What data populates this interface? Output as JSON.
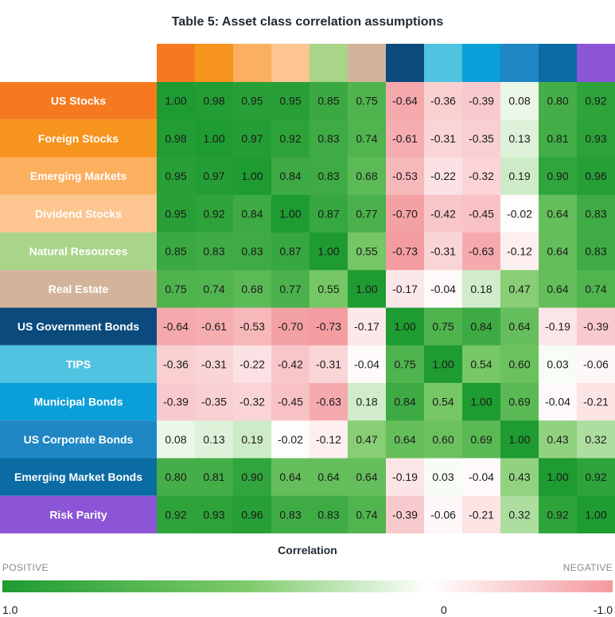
{
  "chart_data": {
    "type": "heatmap",
    "title": "Table 5: Asset class correlation assumptions",
    "rows": [
      "US Stocks",
      "Foreign Stocks",
      "Emerging Markets",
      "Dividend Stocks",
      "Natural Resources",
      "Real Estate",
      "US Government Bonds",
      "TIPS",
      "Municipal Bonds",
      "US Corporate Bonds",
      "Emerging Market Bonds",
      "Risk Parity"
    ],
    "row_colors": [
      "#f57a1f",
      "#f7941d",
      "#fbb060",
      "#fdc590",
      "#a8d58a",
      "#d3b49a",
      "#0a4a7c",
      "#4fc3e0",
      "#0a9fd8",
      "#1f87c4",
      "#0b6ba3",
      "#8c54d6"
    ],
    "values": [
      [
        1.0,
        0.98,
        0.95,
        0.95,
        0.85,
        0.75,
        -0.64,
        -0.36,
        -0.39,
        0.08,
        0.8,
        0.92
      ],
      [
        0.98,
        1.0,
        0.97,
        0.92,
        0.83,
        0.74,
        -0.61,
        -0.31,
        -0.35,
        0.13,
        0.81,
        0.93
      ],
      [
        0.95,
        0.97,
        1.0,
        0.84,
        0.83,
        0.68,
        -0.53,
        -0.22,
        -0.32,
        0.19,
        0.9,
        0.96
      ],
      [
        0.95,
        0.92,
        0.84,
        1.0,
        0.87,
        0.77,
        -0.7,
        -0.42,
        -0.45,
        -0.02,
        0.64,
        0.83
      ],
      [
        0.85,
        0.83,
        0.83,
        0.87,
        1.0,
        0.55,
        -0.73,
        -0.31,
        -0.63,
        -0.12,
        0.64,
        0.83
      ],
      [
        0.75,
        0.74,
        0.68,
        0.77,
        0.55,
        1.0,
        -0.17,
        -0.04,
        0.18,
        0.47,
        0.64,
        0.74
      ],
      [
        -0.64,
        -0.61,
        -0.53,
        -0.7,
        -0.73,
        -0.17,
        1.0,
        0.75,
        0.84,
        0.64,
        -0.19,
        -0.39
      ],
      [
        -0.36,
        -0.31,
        -0.22,
        -0.42,
        -0.31,
        -0.04,
        0.75,
        1.0,
        0.54,
        0.6,
        0.03,
        -0.06
      ],
      [
        -0.39,
        -0.35,
        -0.32,
        -0.45,
        -0.63,
        0.18,
        0.84,
        0.54,
        1.0,
        0.69,
        -0.04,
        -0.21
      ],
      [
        0.08,
        0.13,
        0.19,
        -0.02,
        -0.12,
        0.47,
        0.64,
        0.6,
        0.69,
        1.0,
        0.43,
        0.32
      ],
      [
        0.8,
        0.81,
        0.9,
        0.64,
        0.64,
        0.64,
        -0.19,
        0.03,
        -0.04,
        0.43,
        1.0,
        0.92
      ],
      [
        0.92,
        0.93,
        0.96,
        0.83,
        0.83,
        0.74,
        -0.39,
        -0.06,
        -0.21,
        0.32,
        0.92,
        1.0
      ]
    ],
    "value_range": [
      -1.0,
      1.0
    ],
    "colors": {
      "positive": "#1e9b31",
      "positive_mid": "#7fcb6b",
      "zero": "#ffffff",
      "negative": "#f39a9e"
    },
    "legend": {
      "title": "Correlation",
      "left_label": "POSITIVE",
      "right_label": "NEGATIVE",
      "tick_min": "1.0",
      "tick_mid": "0",
      "tick_max": "-1.0"
    }
  }
}
